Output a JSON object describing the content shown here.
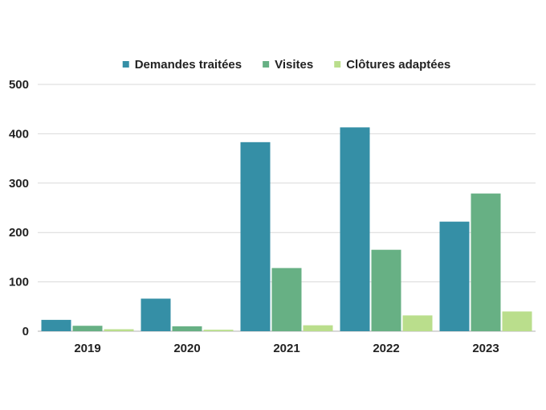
{
  "chart_data": {
    "type": "bar",
    "categories": [
      "2019",
      "2020",
      "2021",
      "2022",
      "2023"
    ],
    "series": [
      {
        "name": "Demandes traitées",
        "color": "#358fa6",
        "values": [
          23,
          66,
          383,
          413,
          222
        ]
      },
      {
        "name": "Visites",
        "color": "#67b084",
        "values": [
          11,
          10,
          128,
          165,
          279
        ]
      },
      {
        "name": "Clôtures adaptées",
        "color": "#bade8c",
        "values": [
          4,
          3,
          12,
          32,
          40
        ]
      }
    ],
    "ylim": [
      0,
      500
    ],
    "yticks": [
      0,
      100,
      200,
      300,
      400,
      500
    ],
    "grid": true,
    "legend_position": "top-center",
    "title": "",
    "xlabel": "",
    "ylabel": ""
  }
}
